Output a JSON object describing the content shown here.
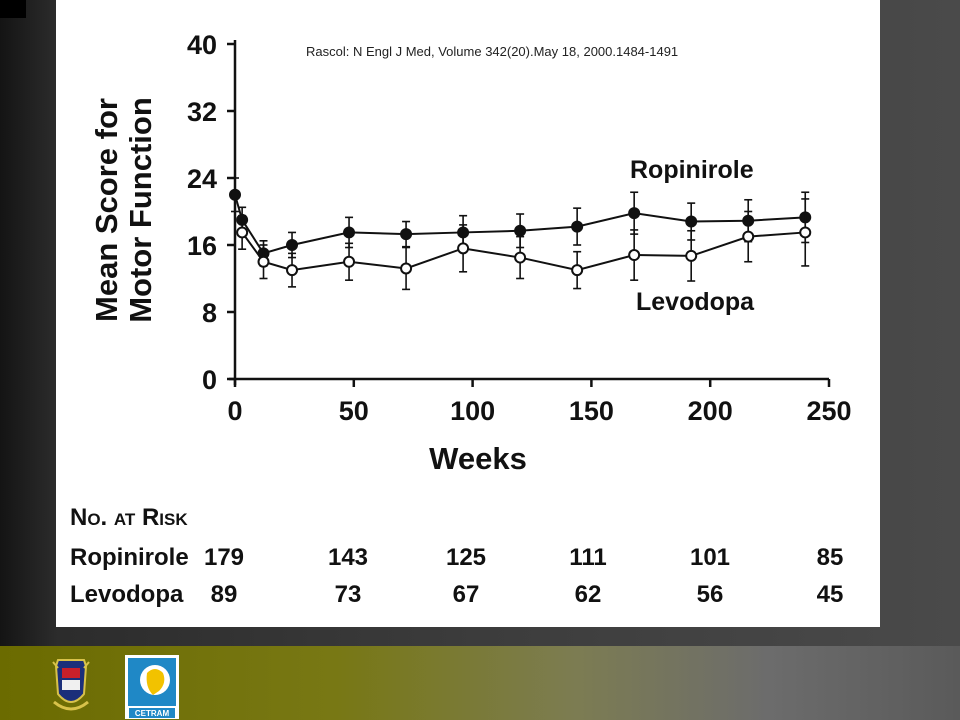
{
  "citation": "Rascol: N Engl J Med, Volume 342(20).May 18, 2000.1484-1491",
  "chart_data": {
    "type": "line",
    "xlabel": "Weeks",
    "ylabel_line1": "Mean Score for",
    "ylabel_line2": "Motor Function",
    "xlim": [
      0,
      250
    ],
    "ylim": [
      0,
      40
    ],
    "xticks": [
      0,
      50,
      100,
      150,
      200,
      250
    ],
    "yticks": [
      0,
      8,
      16,
      24,
      32,
      40
    ],
    "series": [
      {
        "name": "Ropinirole",
        "marker": "filled",
        "x": [
          0,
          3,
          12,
          24,
          48,
          72,
          96,
          120,
          144,
          168,
          192,
          216,
          240
        ],
        "y": [
          22.0,
          19.0,
          15.0,
          16.0,
          17.5,
          17.3,
          17.5,
          17.7,
          18.2,
          19.8,
          18.8,
          18.9,
          19.3
        ],
        "err": [
          2.0,
          1.5,
          1.5,
          1.5,
          1.8,
          1.5,
          2.0,
          2.0,
          2.2,
          2.5,
          2.2,
          2.5,
          3.0
        ]
      },
      {
        "name": "Levodopa",
        "marker": "open",
        "x": [
          3,
          12,
          24,
          48,
          72,
          96,
          120,
          144,
          168,
          192,
          216,
          240
        ],
        "y": [
          17.5,
          14.0,
          13.0,
          14.0,
          13.2,
          15.6,
          14.5,
          13.0,
          14.8,
          14.7,
          17.0,
          17.5
        ],
        "err": [
          2.0,
          2.0,
          2.0,
          2.2,
          2.5,
          2.8,
          2.5,
          2.2,
          3.0,
          3.0,
          3.0,
          4.0
        ]
      }
    ],
    "risk_table": {
      "title": "No. at Risk",
      "rows": [
        {
          "name": "Ropinirole",
          "values": [
            "179",
            "143",
            "125",
            "111",
            "101",
            "85"
          ]
        },
        {
          "name": "Levodopa",
          "values": [
            "89",
            "73",
            "67",
            "62",
            "56",
            "45"
          ]
        }
      ]
    }
  },
  "logos": {
    "left": {
      "icon": "university-crest-icon"
    },
    "right": {
      "icon": "cetram-logo-icon",
      "text": "CETRAM"
    }
  }
}
